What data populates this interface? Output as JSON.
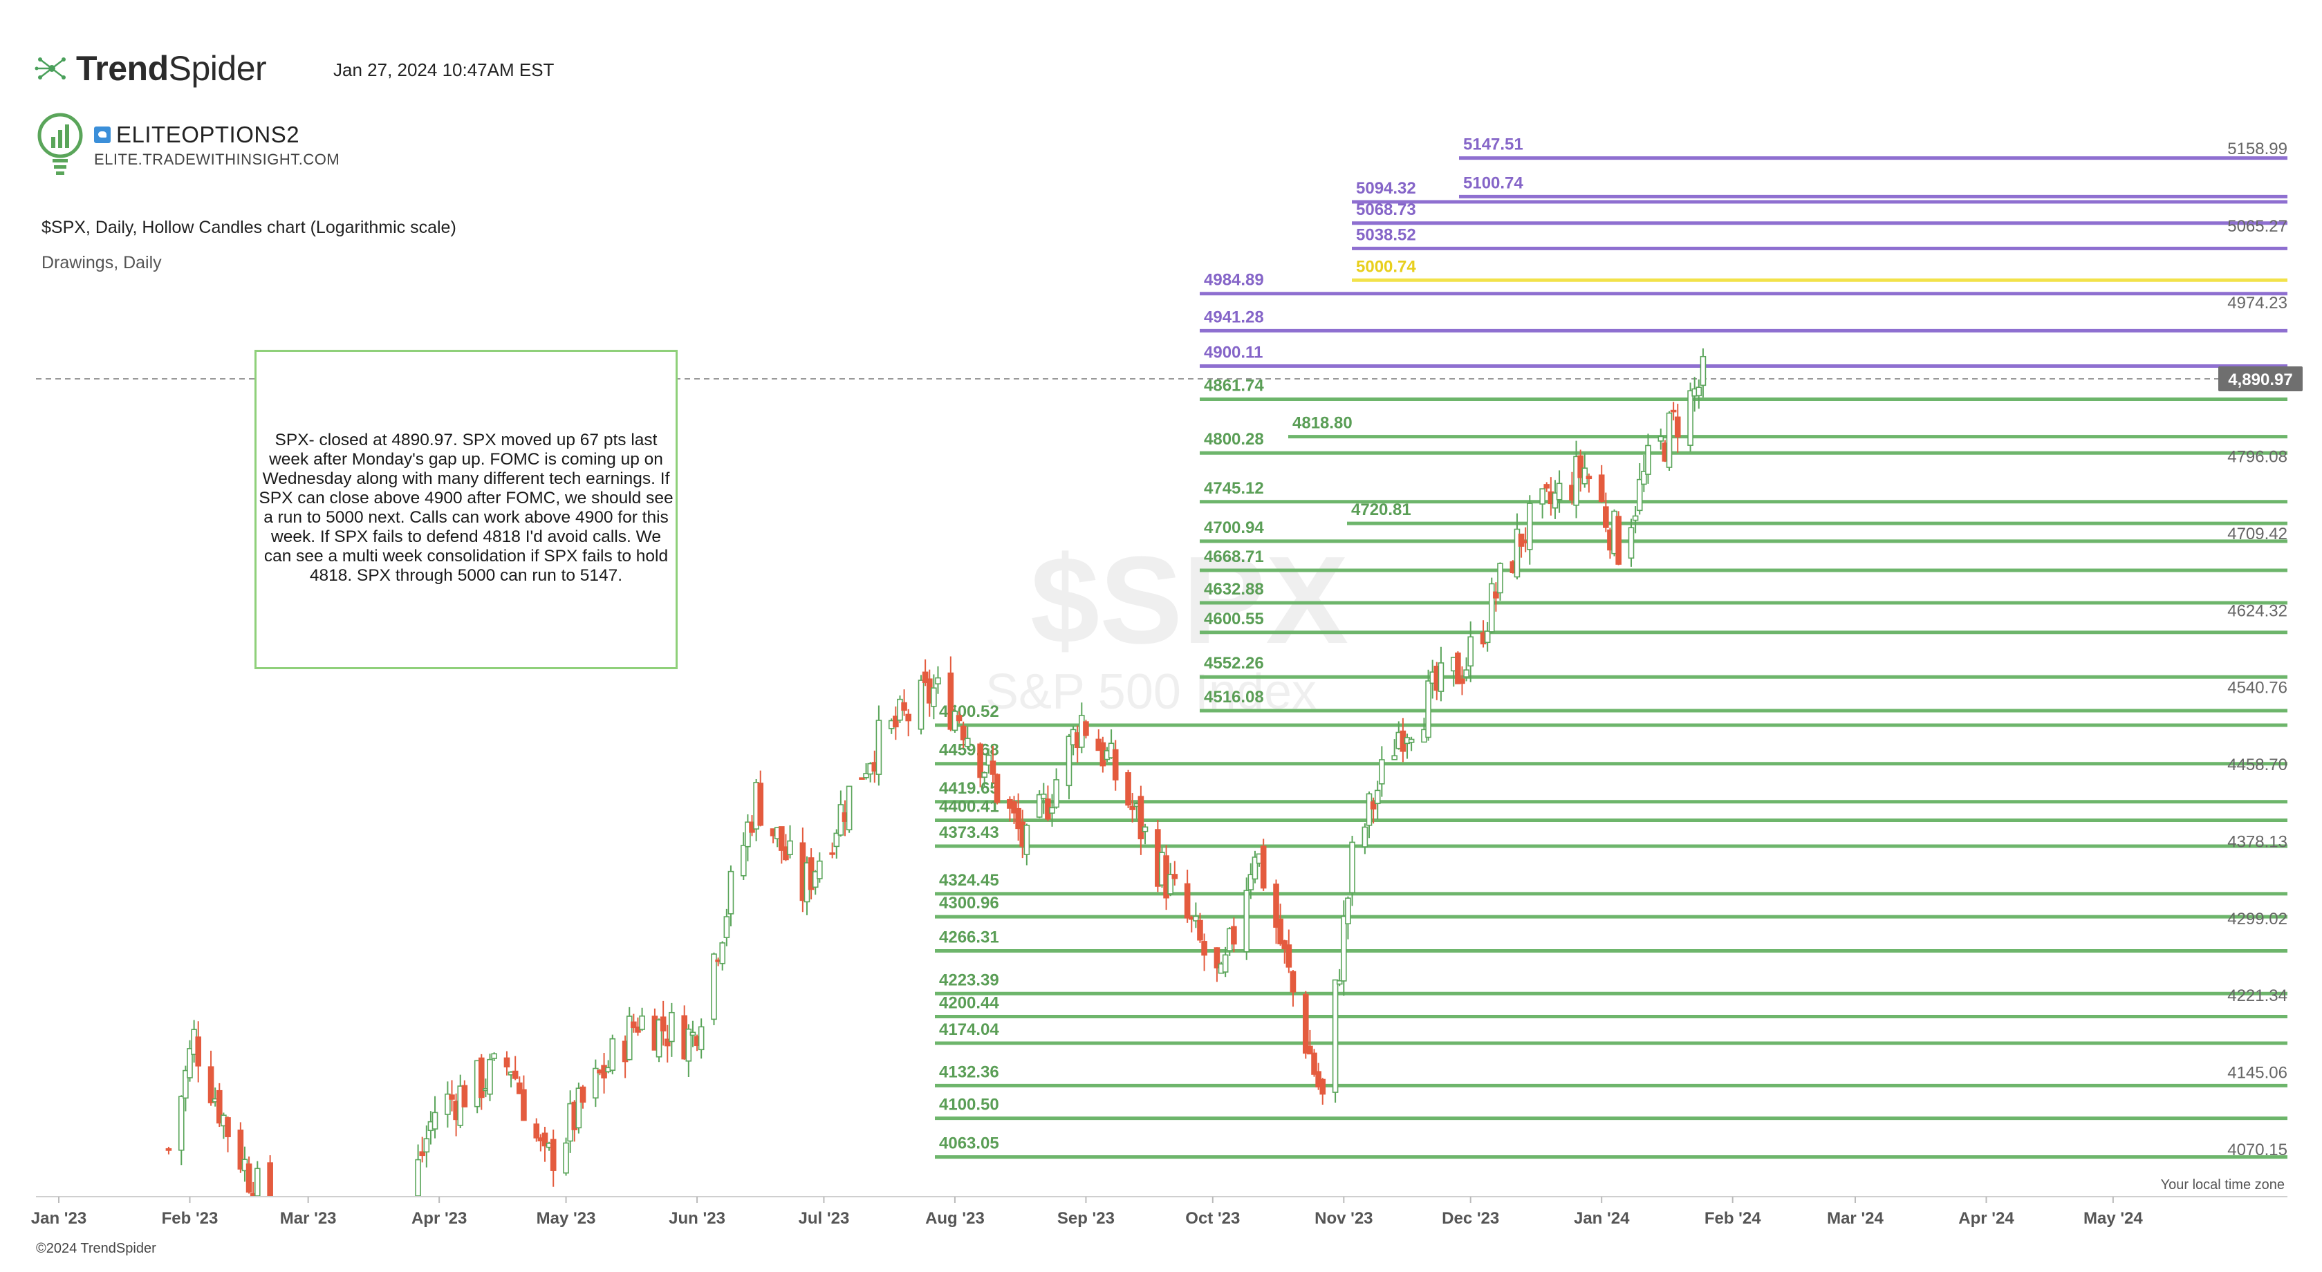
{
  "header": {
    "logo_bold": "Trend",
    "logo_light": "Spider",
    "timestamp": "Jan 27, 2024 10:47AM EST",
    "brand_name": "ELITEOPTIONS2",
    "brand_url": "ELITE.TRADEWITHINSIGHT.COM",
    "chart_title": "$SPX, Daily, Hollow Candles chart (Logarithmic scale)",
    "drawings_label": "Drawings, Daily"
  },
  "note": {
    "text": "SPX- closed at 4890.97. SPX moved up 67 pts last week after Monday's gap up. FOMC is coming up on Wednesday along with many different tech earnings. If SPX can close above 4900 after FOMC, we should see a run to 5000 next. Calls can work above 4900 for this week. If SPX fails to defend 4818 I'd avoid calls. We can see a multi week consolidation if SPX fails to hold 4818. SPX through 5000 can run to 5147."
  },
  "footer": {
    "copyright": "©2024 TrendSpider",
    "timezone_label": "Your local time zone"
  },
  "colors": {
    "green_level": "#6db56b",
    "purple_level": "#8e6fd0",
    "yellow_level": "#f2e24a",
    "up_candle": "#5aa55a",
    "down_candle": "#e45b3e",
    "price_badge_bg": "#6f6f6f"
  },
  "chart_data": {
    "type": "candlestick",
    "title": "$SPX, Daily, Hollow Candles chart (Logarithmic scale)",
    "symbol": "$SPX",
    "watermark": [
      "$SPX",
      "S&P 500 Index"
    ],
    "scale": "log",
    "ylim": [
      4000,
      5200
    ],
    "last_price": "4,890.97",
    "last_price_value": 4890.97,
    "x_tick_labels": [
      "Jan '23",
      "Feb '23",
      "Mar '23",
      "Apr '23",
      "May '23",
      "Jun '23",
      "Jul '23",
      "Aug '23",
      "Sep '23",
      "Oct '23",
      "Nov '23",
      "Dec '23",
      "Jan '24",
      "Feb '24",
      "Mar '24",
      "Apr '24",
      "May '24"
    ],
    "right_axis_labels": [
      "5158.99",
      "5065.27",
      "4974.23",
      "4796.08",
      "4709.42",
      "4624.32",
      "4540.76",
      "4458.70",
      "4378.13",
      "4299.02",
      "4221.34",
      "4145.06",
      "4070.15"
    ],
    "levels": [
      {
        "label": "5147.51",
        "value": 5147.51,
        "color": "purple",
        "start": "Dec '23"
      },
      {
        "label": "5100.74",
        "value": 5100.74,
        "color": "purple",
        "start": "Dec '23"
      },
      {
        "label": "5094.32",
        "value": 5094.32,
        "color": "purple",
        "start": "Nov '23"
      },
      {
        "label": "5068.73",
        "value": 5068.73,
        "color": "purple",
        "start": "Nov '23"
      },
      {
        "label": "5038.52",
        "value": 5038.52,
        "color": "purple",
        "start": "Nov '23"
      },
      {
        "label": "5000.74",
        "value": 5000.74,
        "color": "yellow",
        "start": "Nov '23"
      },
      {
        "label": "4984.89",
        "value": 4984.89,
        "color": "purple",
        "start": "Oct '23"
      },
      {
        "label": "4941.28",
        "value": 4941.28,
        "color": "purple",
        "start": "Oct '23"
      },
      {
        "label": "4900.11",
        "value": 4900.11,
        "color": "purple",
        "start": "Oct '23"
      },
      {
        "label": "4861.74",
        "value": 4861.74,
        "color": "green",
        "start": "Oct '23"
      },
      {
        "label": "4818.80",
        "value": 4818.8,
        "color": "green",
        "start": "Oct '23"
      },
      {
        "label": "4800.28",
        "value": 4800.28,
        "color": "green",
        "start": "Oct '23"
      },
      {
        "label": "4745.12",
        "value": 4745.12,
        "color": "green",
        "start": "Oct '23"
      },
      {
        "label": "4720.81",
        "value": 4720.81,
        "color": "green",
        "start": "Oct '23"
      },
      {
        "label": "4700.94",
        "value": 4700.94,
        "color": "green",
        "start": "Oct '23"
      },
      {
        "label": "4668.71",
        "value": 4668.71,
        "color": "green",
        "start": "Oct '23"
      },
      {
        "label": "4632.88",
        "value": 4632.88,
        "color": "green",
        "start": "Oct '23"
      },
      {
        "label": "4600.55",
        "value": 4600.55,
        "color": "green",
        "start": "Oct '23"
      },
      {
        "label": "4552.26",
        "value": 4552.26,
        "color": "green",
        "start": "Oct '23"
      },
      {
        "label": "4516.08",
        "value": 4516.08,
        "color": "green",
        "start": "Oct '23"
      },
      {
        "label": "4500.52",
        "value": 4500.52,
        "color": "green",
        "start": "Aug '23"
      },
      {
        "label": "4459.68",
        "value": 4459.68,
        "color": "green",
        "start": "Aug '23"
      },
      {
        "label": "4419.65",
        "value": 4419.65,
        "color": "green",
        "start": "Aug '23"
      },
      {
        "label": "4400.41",
        "value": 4400.41,
        "color": "green",
        "start": "Aug '23"
      },
      {
        "label": "4373.43",
        "value": 4373.43,
        "color": "green",
        "start": "Aug '23"
      },
      {
        "label": "4324.45",
        "value": 4324.45,
        "color": "green",
        "start": "Aug '23"
      },
      {
        "label": "4300.96",
        "value": 4300.96,
        "color": "green",
        "start": "Aug '23"
      },
      {
        "label": "4266.31",
        "value": 4266.31,
        "color": "green",
        "start": "Aug '23"
      },
      {
        "label": "4223.39",
        "value": 4223.39,
        "color": "green",
        "start": "Aug '23"
      },
      {
        "label": "4200.44",
        "value": 4200.44,
        "color": "green",
        "start": "Aug '23"
      },
      {
        "label": "4174.04",
        "value": 4174.04,
        "color": "green",
        "start": "Aug '23"
      },
      {
        "label": "4132.36",
        "value": 4132.36,
        "color": "green",
        "start": "Aug '23"
      },
      {
        "label": "4100.50",
        "value": 4100.5,
        "color": "green",
        "start": "Aug '23"
      },
      {
        "label": "4063.05",
        "value": 4063.05,
        "color": "green",
        "start": "Aug '23"
      }
    ],
    "price_path": [
      {
        "date": "2023-01-27",
        "close": 4070
      },
      {
        "date": "2023-02-02",
        "close": 4179
      },
      {
        "date": "2023-02-10",
        "close": 4090
      },
      {
        "date": "2023-02-24",
        "close": 3970
      },
      {
        "date": "2023-03-13",
        "close": 3855
      },
      {
        "date": "2023-03-31",
        "close": 4109
      },
      {
        "date": "2023-04-18",
        "close": 4154
      },
      {
        "date": "2023-04-26",
        "close": 4055
      },
      {
        "date": "2023-05-18",
        "close": 4198
      },
      {
        "date": "2023-05-31",
        "close": 4180
      },
      {
        "date": "2023-06-15",
        "close": 4425
      },
      {
        "date": "2023-06-26",
        "close": 4328
      },
      {
        "date": "2023-07-12",
        "close": 4473
      },
      {
        "date": "2023-07-27",
        "close": 4537
      },
      {
        "date": "2023-08-02",
        "close": 4513
      },
      {
        "date": "2023-08-18",
        "close": 4370
      },
      {
        "date": "2023-08-31",
        "close": 4508
      },
      {
        "date": "2023-09-06",
        "close": 4465
      },
      {
        "date": "2023-09-21",
        "close": 4330
      },
      {
        "date": "2023-10-03",
        "close": 4229
      },
      {
        "date": "2023-10-11",
        "close": 4376
      },
      {
        "date": "2023-10-20",
        "close": 4224
      },
      {
        "date": "2023-10-27",
        "close": 4117
      },
      {
        "date": "2023-11-03",
        "close": 4358
      },
      {
        "date": "2023-11-14",
        "close": 4495
      },
      {
        "date": "2023-11-30",
        "close": 4568
      },
      {
        "date": "2023-12-13",
        "close": 4707
      },
      {
        "date": "2023-12-28",
        "close": 4783
      },
      {
        "date": "2024-01-05",
        "close": 4697
      },
      {
        "date": "2024-01-12",
        "close": 4783
      },
      {
        "date": "2024-01-19",
        "close": 4840
      },
      {
        "date": "2024-01-26",
        "close": 4890.97
      }
    ]
  }
}
